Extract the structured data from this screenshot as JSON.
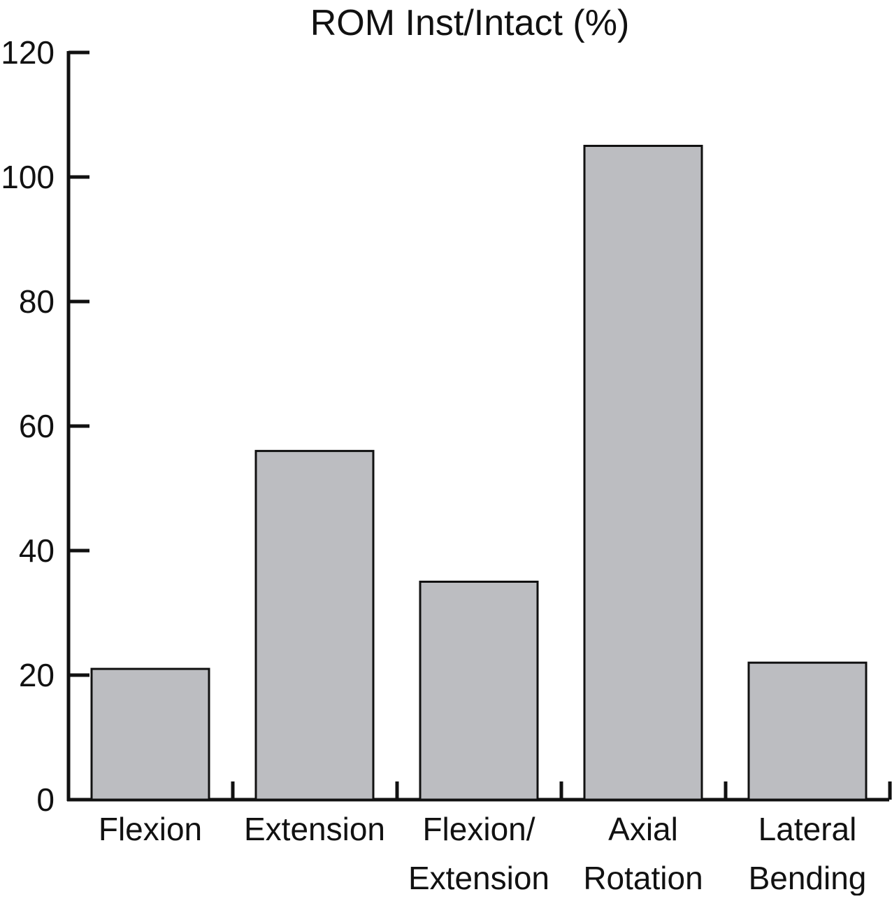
{
  "chart_data": {
    "type": "bar",
    "title": "ROM Inst/Intact (%)",
    "xlabel": "",
    "ylabel": "",
    "categories": [
      [
        "Flexion"
      ],
      [
        "Extension"
      ],
      [
        "Flexion/",
        "Extension"
      ],
      [
        "Axial",
        "Rotation"
      ],
      [
        "Lateral",
        "Bending"
      ]
    ],
    "values": [
      21,
      56,
      35,
      105,
      22
    ],
    "ylim": [
      0,
      120
    ],
    "yticks": [
      0,
      20,
      40,
      60,
      80,
      100,
      120
    ],
    "grid": false,
    "legend": "none",
    "colors": {
      "bar_fill": "#bcbdc1",
      "bar_stroke": "#111111",
      "axis": "#111111"
    }
  }
}
